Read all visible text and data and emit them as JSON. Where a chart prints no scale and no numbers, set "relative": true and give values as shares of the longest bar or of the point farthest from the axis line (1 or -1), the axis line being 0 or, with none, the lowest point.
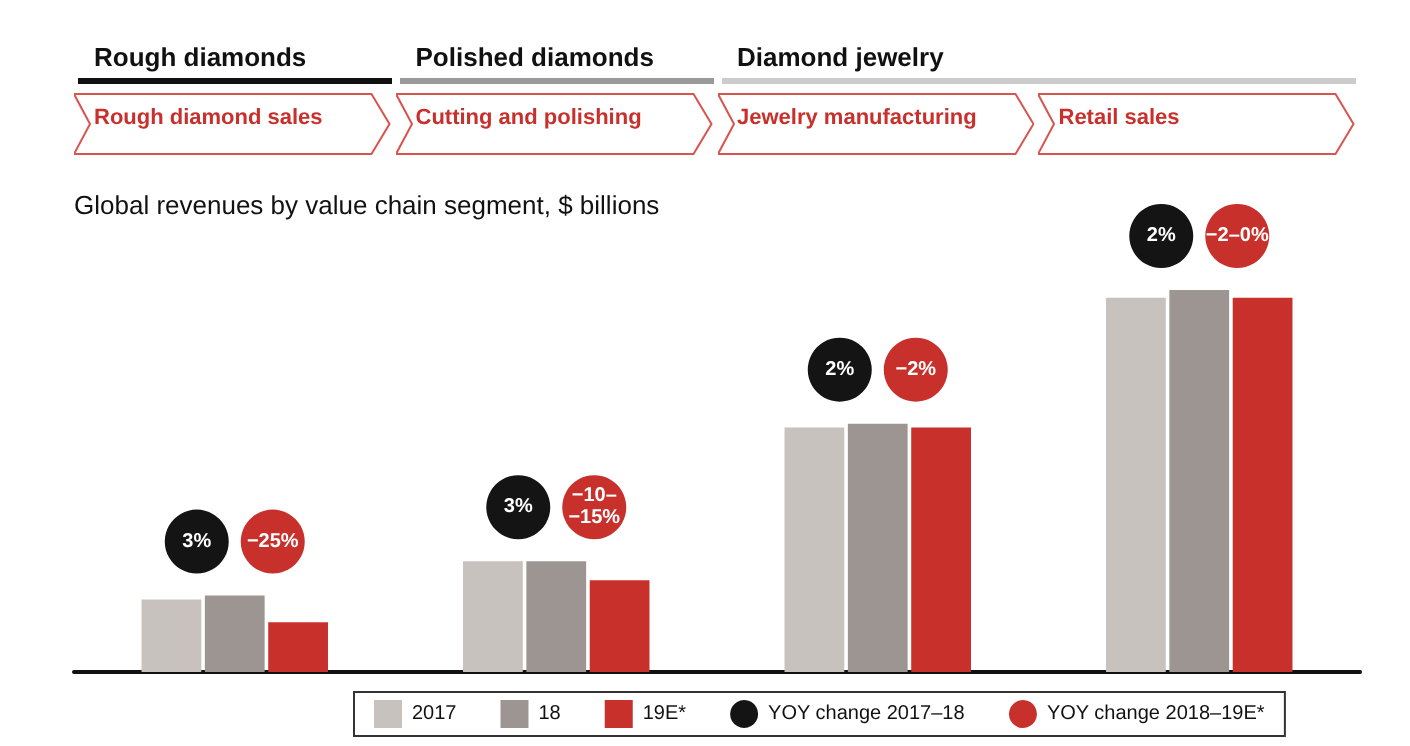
{
  "chart_data": {
    "type": "bar",
    "relative": true,
    "title": "Global revenues by value chain segment, $ billions",
    "annotations": [
      "Rough diamonds",
      "Polished diamonds",
      "Diamond jewelry",
      "3%",
      "−25%",
      "3%",
      "−10–\n−15%",
      "2%",
      "−2%",
      "2%",
      "−2–0%"
    ],
    "categories": [
      "Rough diamond sales",
      "Cutting and polishing",
      "Jewelry manufacturing",
      "Retail sales"
    ],
    "series": [
      {
        "name": "2017",
        "color": "#c8c2bf",
        "values": [
          0.19,
          0.29,
          0.64,
          0.98
        ]
      },
      {
        "name": "18",
        "color": "#9c9592",
        "values": [
          0.2,
          0.29,
          0.65,
          1
        ]
      },
      {
        "name": "19E*",
        "color": "#c8302c",
        "values": [
          0.13,
          0.24,
          0.64,
          0.98
        ]
      },
      {
        "name": "YOY change 2017–18",
        "type": "scatter",
        "color": "#141414",
        "values": [
          null,
          null,
          null,
          null
        ]
      },
      {
        "name": "YOY change 2018–19E*",
        "type": "scatter",
        "color": "#c8302c",
        "values": [
          null,
          null,
          null,
          null
        ]
      }
    ],
    "marker": "circle",
    "legend": "bottom"
  }
}
